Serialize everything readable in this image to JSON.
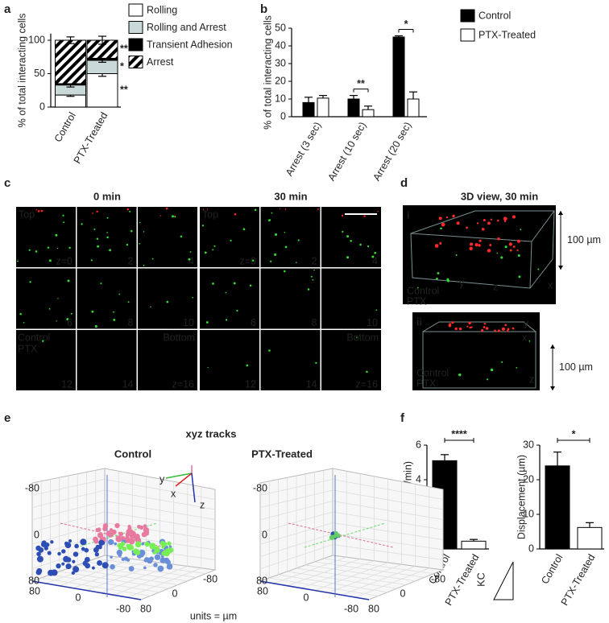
{
  "panel_labels": [
    "a",
    "b",
    "c",
    "d",
    "e",
    "f"
  ],
  "chart_data": [
    {
      "type": "stacked_bar",
      "ylabel": "% of total interacting cells",
      "categories": [
        "Control",
        "PTX-Treated"
      ],
      "series": [
        {
          "name": "Rolling",
          "color": "#ffffff",
          "values": [
            18,
            50
          ],
          "errors": [
            2,
            4
          ],
          "annotation": "**"
        },
        {
          "name": "Rolling and Arrest",
          "color": "#c9d9d8",
          "values": [
            15,
            20
          ],
          "errors": [
            3,
            3
          ],
          "annotation": "*"
        },
        {
          "name": "Transient Adhesion",
          "color": "#000000",
          "values": [
            2,
            3
          ]
        },
        {
          "name": "Arrest",
          "pattern": "hatch",
          "values": [
            65,
            27
          ],
          "errors": [
            5,
            6
          ],
          "annotation": "**"
        }
      ],
      "ylim": [
        0,
        110
      ],
      "yticks": [
        0,
        50,
        100
      ],
      "legend": "right"
    },
    {
      "type": "grouped_bar",
      "ylabel": "% of total interacting cells",
      "categories": [
        "Arrest (3 sec)",
        "Arrest (10 sec)",
        "Arrest (20 sec)"
      ],
      "series": [
        {
          "name": "Control",
          "color": "#000000",
          "values": [
            8,
            10,
            45
          ],
          "errors": [
            3,
            2,
            0.7
          ]
        },
        {
          "name": "PTX-Treated",
          "color": "#ffffff",
          "values": [
            10.5,
            4,
            10
          ],
          "errors": [
            1.5,
            2,
            4
          ]
        }
      ],
      "annotations": [
        null,
        "**",
        "*"
      ],
      "ylim": [
        0,
        50
      ],
      "yticks": [
        0,
        10,
        20,
        30,
        40,
        50
      ],
      "legend": "right"
    },
    {
      "type": "bar",
      "ylabel": "Speed (µm/min)",
      "categories": [
        "Control",
        "PTX-Treated"
      ],
      "values": [
        5.1,
        0.45
      ],
      "errors": [
        0.35,
        0.1
      ],
      "colors": [
        "#000000",
        "#ffffff"
      ],
      "annotation": "****",
      "ylim": [
        0,
        6
      ],
      "yticks": [
        0,
        2,
        4,
        6
      ]
    },
    {
      "type": "bar",
      "ylabel": "Displacement (µm)",
      "categories": [
        "Control",
        "PTX-Treated"
      ],
      "values": [
        24,
        6.2
      ],
      "errors": [
        4,
        1.4
      ],
      "colors": [
        "#000000",
        "#ffffff"
      ],
      "annotation": "*",
      "ylim": [
        0,
        30
      ],
      "yticks": [
        0,
        10,
        20,
        30
      ]
    }
  ],
  "panel_c": {
    "times": [
      "0 min",
      "30 min"
    ],
    "top_label": "Top",
    "bottom_label": "Bottom",
    "z_labels": [
      "z=0",
      "2",
      "4",
      "6",
      "8",
      "10",
      "12",
      "14",
      "z=16"
    ],
    "legend": [
      {
        "name": "Control",
        "color": "#33dd33"
      },
      {
        "name": "PTX",
        "color": "#ff2222"
      }
    ]
  },
  "panel_d": {
    "title": "3D view, 30 min",
    "views": [
      {
        "label": "i",
        "axes": [
          "y",
          "z",
          "x"
        ],
        "scale": "100 µm"
      },
      {
        "label": "ii",
        "axes": [
          "y",
          "x",
          "z"
        ],
        "scale": "100 µm"
      }
    ],
    "legend": [
      "Control",
      "PTX"
    ]
  },
  "panel_e": {
    "title": "xyz tracks",
    "axes": [
      "y",
      "x",
      "z"
    ],
    "panels": [
      {
        "title": "Control",
        "z_ticks": [
          -80,
          0,
          80
        ],
        "x_ticks": [
          80,
          0,
          -80
        ],
        "y_ticks": [
          80,
          0,
          -80
        ]
      },
      {
        "title": "PTX-Treated",
        "z_ticks": [
          -80,
          0,
          80
        ],
        "x_ticks": [
          80,
          0,
          -80
        ],
        "y_ticks": [
          80,
          0,
          -80
        ]
      }
    ],
    "units": "units = µm",
    "scale_label": "KC"
  }
}
